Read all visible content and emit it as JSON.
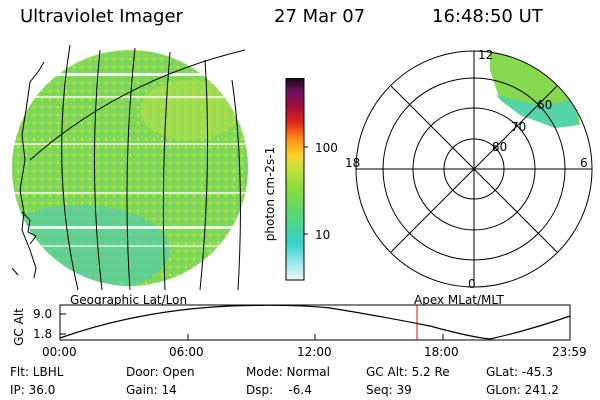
{
  "header": {
    "title": "Ultraviolet Imager",
    "date": "27 Mar 07",
    "time": "16:48:50 UT"
  },
  "colorbar": {
    "label": "photon cm-2s-1",
    "ticks": [
      "100",
      "10"
    ]
  },
  "left_panel": {
    "label": "Geographic Lat/Lon"
  },
  "right_panel": {
    "label": "Apex MLat/MLT",
    "mlt_labels": [
      "12",
      "18",
      "6",
      "0"
    ],
    "lat_labels": [
      "60",
      "70",
      "80"
    ]
  },
  "altitude_plot": {
    "ylabel": "GC Alt",
    "y_ticks": [
      "9.0",
      "1.8"
    ],
    "x_ticks": [
      "00:00",
      "06:00",
      "12:00",
      "18:00",
      "23:59"
    ]
  },
  "footer": {
    "filter": "Flt: LBHL",
    "ip": "IP: 36.0",
    "door": "Door: Open",
    "gain": "Gain: 14",
    "mode": "Mode: Normal",
    "dsp": "Dsp:    -6.4",
    "gc_alt": "GC Alt: 5.2 Re",
    "seq": "Seq: 39",
    "glat": "GLat: -45.3",
    "glon": "GLon: 241.2"
  },
  "colors": {
    "image_green": "#7ed957",
    "image_cyan": "#40e0d0",
    "marker_red": "#d01010"
  }
}
